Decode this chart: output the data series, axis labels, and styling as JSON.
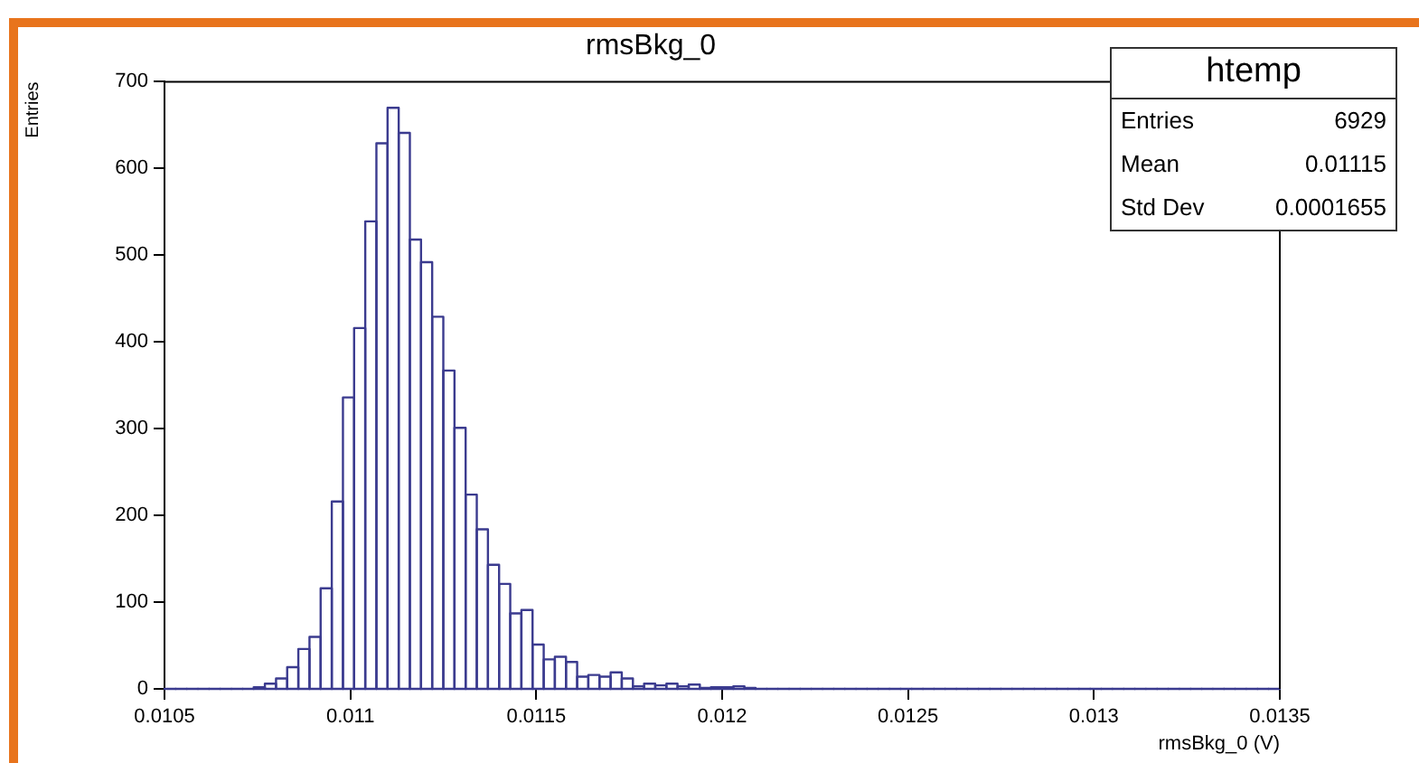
{
  "chart_data": {
    "type": "histogram",
    "title": "rmsBkg_0",
    "xlabel": "rmsBkg_0 (V)",
    "ylabel": "Entries",
    "annotations": [
      "htemp",
      "Entries",
      "6929",
      "Mean",
      "0.01115",
      "Std Dev",
      "0.0001655"
    ],
    "bins": [
      0.0105,
      0.01053,
      0.01056,
      0.01059,
      0.01062,
      0.01065,
      0.01068,
      0.01071,
      0.01074,
      0.01077,
      0.0108,
      0.01083,
      0.01086,
      0.01089,
      0.01092,
      0.01095,
      0.01098,
      0.01101,
      0.01104,
      0.01107,
      0.0111,
      0.01113,
      0.01116,
      0.01119,
      0.01122,
      0.01125,
      0.01128,
      0.01131,
      0.01134,
      0.01137,
      0.0114,
      0.01143,
      0.01146,
      0.01149,
      0.01152,
      0.01155,
      0.01158,
      0.01161,
      0.01164,
      0.01167,
      0.0117,
      0.01173,
      0.01176,
      0.01179,
      0.01182,
      0.01185,
      0.01188,
      0.01191,
      0.01194,
      0.01197,
      0.012,
      0.01203,
      0.01206,
      0.01209,
      0.01212,
      0.01215,
      0.01218,
      0.01221,
      0.01224,
      0.01227,
      0.0123,
      0.01233,
      0.01236,
      0.01239,
      0.01242,
      0.01245,
      0.01248,
      0.01251,
      0.01254,
      0.01257,
      0.0126,
      0.01263,
      0.01266,
      0.01269,
      0.01272,
      0.01275,
      0.01278,
      0.01281,
      0.01284,
      0.01287,
      0.0129,
      0.01293,
      0.01296,
      0.01299,
      0.01302,
      0.01305,
      0.01308,
      0.01311,
      0.01314,
      0.01317,
      0.0132,
      0.01323,
      0.01326,
      0.01329,
      0.01332,
      0.01335,
      0.01338,
      0.01341,
      0.01344,
      0.01347,
      0.0135
    ],
    "values": [
      0,
      0,
      0,
      0,
      0,
      0,
      0,
      0,
      2,
      6,
      12,
      25,
      46,
      60,
      116,
      216,
      336,
      416,
      539,
      629,
      670,
      641,
      518,
      492,
      429,
      367,
      301,
      224,
      184,
      143,
      121,
      87,
      91,
      51,
      34,
      37,
      31,
      14,
      16,
      14,
      19,
      12,
      3,
      6,
      4,
      6,
      3,
      5,
      1,
      2,
      2,
      3,
      1,
      0,
      0,
      0,
      0,
      0,
      0,
      0,
      0,
      0,
      0,
      0,
      0,
      0,
      0,
      0,
      0,
      0,
      0,
      0,
      0,
      0,
      0,
      0,
      0,
      0,
      0,
      0,
      0,
      0,
      0,
      0,
      0,
      0,
      0,
      0,
      0,
      0,
      0,
      0,
      0,
      0,
      0,
      0,
      0,
      0,
      0,
      0
    ],
    "color": "#3b3b8f",
    "xlim": [
      0.0105,
      0.0135
    ],
    "xticks": [
      0.0105,
      0.011,
      0.0115,
      0.012,
      0.0125,
      0.013,
      0.0135
    ],
    "ylim": [
      0,
      700
    ],
    "yticks": [
      0,
      100,
      200,
      300,
      400,
      500,
      600,
      700
    ],
    "grid": false,
    "legend": false
  }
}
